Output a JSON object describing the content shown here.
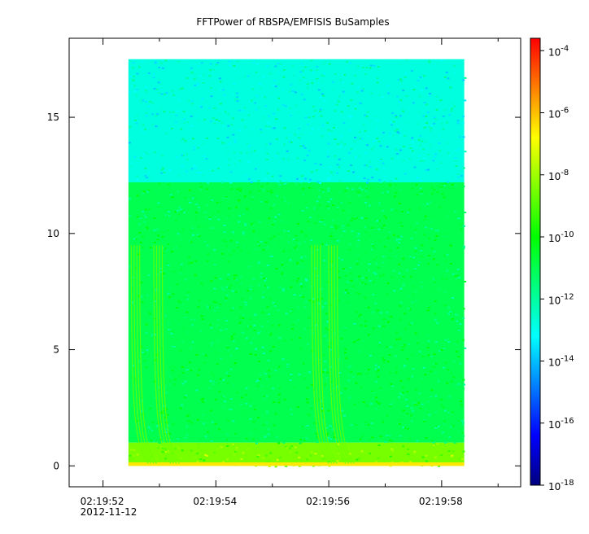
{
  "chart_data": {
    "type": "heatmap",
    "title": "FFTPower of RBSPA/EMFISIS  BuSamples",
    "xlabel": "",
    "ylabel": "",
    "x_ticks": [
      {
        "label": "02:19:52",
        "sub": "2012-11-12",
        "t": 52
      },
      {
        "label": "02:19:54",
        "sub": "",
        "t": 54
      },
      {
        "label": "02:19:56",
        "sub": "",
        "t": 56
      },
      {
        "label": "02:19:58",
        "sub": "",
        "t": 58
      }
    ],
    "x_minor": [
      53,
      55,
      57,
      59
    ],
    "xlim": [
      51.4,
      59.4
    ],
    "data_xlim": [
      52.45,
      58.4
    ],
    "ylim": [
      -0.9,
      18.4
    ],
    "data_ylim": [
      0,
      17.5
    ],
    "y_ticks": [
      0,
      5,
      10,
      15
    ],
    "colorbar": {
      "scale": "log",
      "range_exp": [
        -18,
        -3.6
      ],
      "tick_base": "10",
      "tick_exps": [
        "-4",
        "-6",
        "-8",
        "-10",
        "-12",
        "-14",
        "-16",
        "-18"
      ],
      "colors": [
        "#00007f",
        "#0000ff",
        "#007fff",
        "#00ffff",
        "#00ff7f",
        "#00ff00",
        "#7fff00",
        "#ffff00",
        "#ff7f00",
        "#ff0000"
      ]
    },
    "bands": [
      {
        "y_range": [
          12.2,
          17.5
        ],
        "level_exp": -12.8,
        "note": "upper band"
      },
      {
        "y_range": [
          1.0,
          12.2
        ],
        "level_exp": -11.0
      },
      {
        "y_range": [
          0.0,
          1.0
        ],
        "level_exp": -8.5
      }
    ],
    "features": [
      {
        "kind": "whistler-tail",
        "t": 52.5
      },
      {
        "kind": "whistler-tail",
        "t": 52.9
      },
      {
        "kind": "whistler-tail",
        "t": 55.7
      },
      {
        "kind": "whistler-tail",
        "t": 56.0
      }
    ]
  }
}
